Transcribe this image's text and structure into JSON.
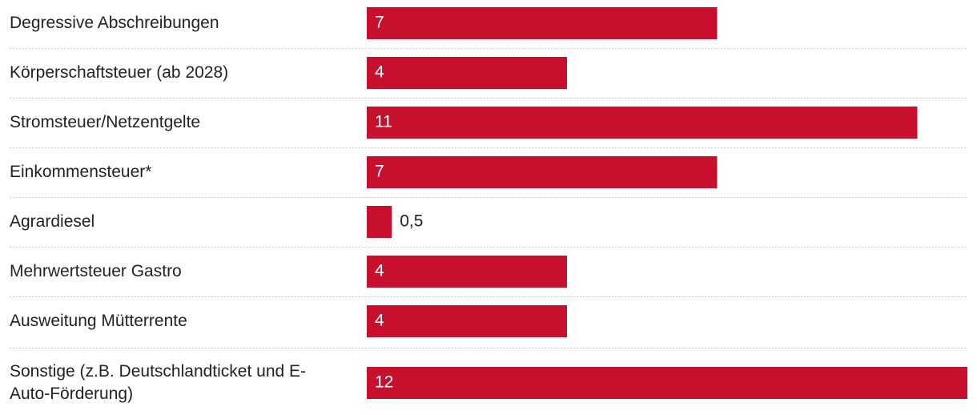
{
  "chart_data": {
    "type": "bar",
    "orientation": "horizontal",
    "categories": [
      "Degressive Abschreibungen",
      "Körperschaftsteuer (ab 2028)",
      "Stromsteuer/Netzentgelte",
      "Einkommensteuer*",
      "Agrardiesel",
      "Mehrwertsteuer Gastro",
      "Ausweitung Mütterrente",
      "Sonstige (z.B. Deutschlandticket und E-Auto-Förderung)"
    ],
    "category_lines": [
      [
        "Degressive Abschreibungen"
      ],
      [
        "Körperschaftsteuer (ab 2028)"
      ],
      [
        "Stromsteuer/Netzentgelte"
      ],
      [
        "Einkommensteuer*"
      ],
      [
        "Agrardiesel"
      ],
      [
        "Mehrwertsteuer Gastro"
      ],
      [
        "Ausweitung Mütterrente"
      ],
      [
        "Sonstige (z.B. Deutschlandticket und E-",
        "Auto-Förderung)"
      ]
    ],
    "values": [
      7,
      4,
      11,
      7,
      0.5,
      4,
      4,
      12
    ],
    "value_labels": [
      "7",
      "4",
      "11",
      "7",
      "0,5",
      "4",
      "4",
      "12"
    ],
    "xlim": [
      0,
      12
    ],
    "grid": false,
    "row_separators": true,
    "bar_color": "#c8102e",
    "value_label_color_inside": "#ffffff",
    "value_label_color_outside": "#222222"
  }
}
